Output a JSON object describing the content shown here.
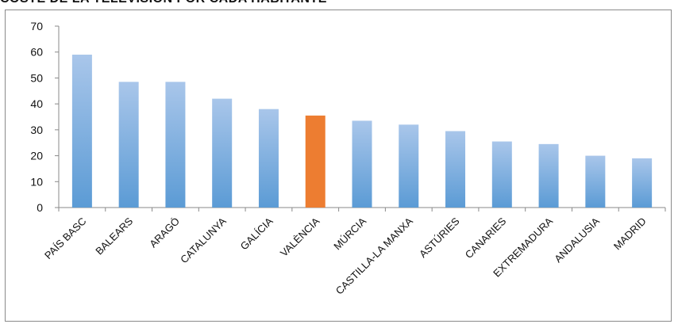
{
  "chart_data": {
    "type": "bar",
    "title": "COSTE DE LA TELEVISIÓN POR CADA HABITANTE",
    "categories": [
      "PAÍS BASC",
      "BALEARS",
      "ARAGÓ",
      "CATALUNYA",
      "GALÍCIA",
      "VALÈNCIA",
      "MÚRCIA",
      "CASTILLA-LA MANXA",
      "ASTÚRIES",
      "CANARIES",
      "EXTREMADURA",
      "ANDALUSIA",
      "MADRID"
    ],
    "values": [
      59,
      48.5,
      48.5,
      42,
      38,
      35.5,
      33.5,
      32,
      29.5,
      25.5,
      24.5,
      20,
      19
    ],
    "highlight_category": "VALÈNCIA",
    "colors": {
      "bar": "#5b9bd5",
      "bar_light": "#a9c6ea",
      "highlight": "#ed7d31",
      "axis": "#8a8a8a"
    },
    "ylim": [
      0,
      70
    ],
    "yticks": [
      0,
      10,
      20,
      30,
      40,
      50,
      60,
      70
    ],
    "grid": false,
    "legend": "none"
  }
}
